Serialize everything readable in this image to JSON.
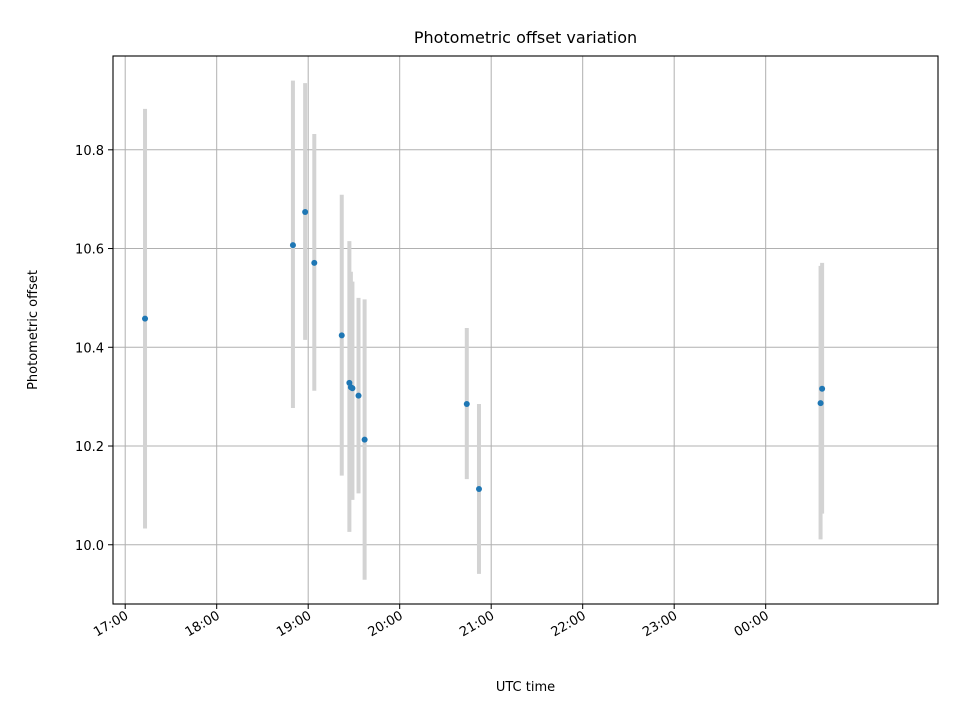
{
  "chart_data": {
    "type": "scatter",
    "title": "Photometric offset variation",
    "xlabel": "UTC time",
    "ylabel": "Photometric offset",
    "x_axis": {
      "kind": "time",
      "min": "16:52",
      "max": "01:53",
      "ticks": [
        "17:00",
        "18:00",
        "19:00",
        "20:00",
        "21:00",
        "22:00",
        "23:00",
        "00:00"
      ]
    },
    "ylim": [
      9.88,
      10.99
    ],
    "yticks": [
      "10.0",
      "10.2",
      "10.4",
      "10.6",
      "10.8"
    ],
    "grid": true,
    "colors": {
      "points": "#1f77b4",
      "errorbars": "#d3d3d3",
      "grid": "#b0b0b0"
    },
    "points": [
      {
        "x": "17:13",
        "y": 10.458,
        "ylo": 10.033,
        "yhi": 10.883
      },
      {
        "x": "18:50",
        "y": 10.607,
        "ylo": 10.277,
        "yhi": 10.94
      },
      {
        "x": "18:58",
        "y": 10.674,
        "ylo": 10.415,
        "yhi": 10.935
      },
      {
        "x": "19:04",
        "y": 10.571,
        "ylo": 10.312,
        "yhi": 10.832
      },
      {
        "x": "19:22",
        "y": 10.424,
        "ylo": 10.14,
        "yhi": 10.709
      },
      {
        "x": "19:27",
        "y": 10.328,
        "ylo": 10.026,
        "yhi": 10.615
      },
      {
        "x": "19:28",
        "y": 10.319,
        "ylo": 10.107,
        "yhi": 10.553
      },
      {
        "x": "19:29",
        "y": 10.317,
        "ylo": 10.091,
        "yhi": 10.533
      },
      {
        "x": "19:33",
        "y": 10.302,
        "ylo": 10.104,
        "yhi": 10.5
      },
      {
        "x": "19:37",
        "y": 10.213,
        "ylo": 9.929,
        "yhi": 10.497
      },
      {
        "x": "20:44",
        "y": 10.285,
        "ylo": 10.133,
        "yhi": 10.439
      },
      {
        "x": "20:52",
        "y": 10.113,
        "ylo": 9.941,
        "yhi": 10.285
      },
      {
        "x": "00:36",
        "y": 10.287,
        "ylo": 10.011,
        "yhi": 10.565
      },
      {
        "x": "00:37",
        "y": 10.316,
        "ylo": 10.063,
        "yhi": 10.571
      }
    ]
  }
}
